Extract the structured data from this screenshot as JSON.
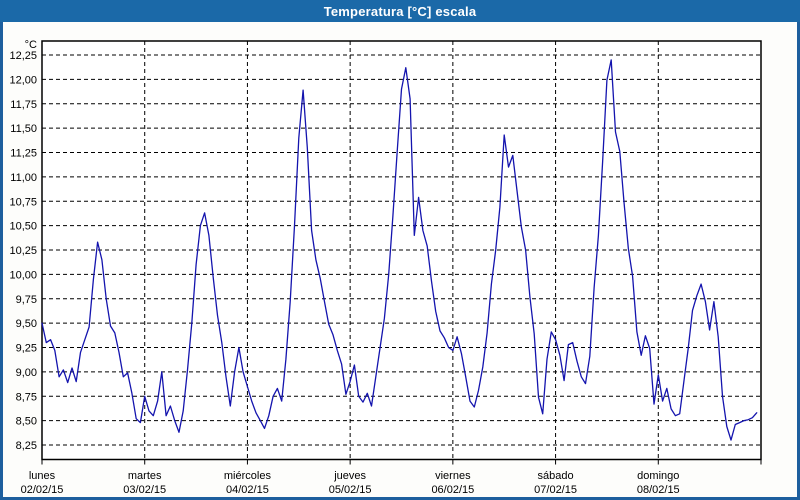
{
  "window": {
    "title": "Temperatura [°C] escala"
  },
  "colors": {
    "title_bar": "#1b69a8",
    "frame": "#1e5f9e",
    "line": "#1414ae",
    "grid": "#000000",
    "plot_background": "#ffffff",
    "page_background": "#fdfdfb",
    "text": "#000000"
  },
  "chart_data": {
    "type": "line",
    "title": "Temperatura [°C] escala",
    "y_unit_label": "°C",
    "ylabel": "Temperatura",
    "ylim": [
      8.1,
      12.4
    ],
    "grid": "dashed",
    "legend": "none",
    "y_ticks": [
      12.25,
      12.0,
      11.75,
      11.5,
      11.25,
      11.0,
      10.75,
      10.5,
      10.25,
      10.0,
      9.75,
      9.5,
      9.25,
      9.0,
      8.75,
      8.5,
      8.25
    ],
    "y_tick_labels": [
      "12,25",
      "12,00",
      "11,75",
      "11,50",
      "11,25",
      "11,00",
      "10,75",
      "10,50",
      "10,25",
      "10,00",
      "9,75",
      "9,50",
      "9,25",
      "9,00",
      "8,75",
      "8,50",
      "8,25"
    ],
    "x_days": [
      {
        "name": "lunes",
        "date": "02/02/15"
      },
      {
        "name": "martes",
        "date": "03/02/15"
      },
      {
        "name": "miércoles",
        "date": "04/02/15"
      },
      {
        "name": "jueves",
        "date": "05/02/15"
      },
      {
        "name": "viernes",
        "date": "06/02/15"
      },
      {
        "name": "sábado",
        "date": "07/02/15"
      },
      {
        "name": "domingo",
        "date": "08/02/15"
      }
    ],
    "series": [
      {
        "name": "Temperatura",
        "points_per_day": 24,
        "hourly_values_by_day": [
          [
            9.5,
            9.3,
            9.33,
            9.22,
            8.95,
            9.02,
            8.89,
            9.04,
            8.9,
            9.2,
            9.33,
            9.46,
            9.95,
            10.33,
            10.15,
            9.75,
            9.47,
            9.4,
            9.2,
            8.95,
            8.99,
            8.78,
            8.52,
            8.48
          ],
          [
            8.75,
            8.6,
            8.55,
            8.7,
            9.0,
            8.55,
            8.65,
            8.5,
            8.38,
            8.6,
            9.02,
            9.5,
            10.1,
            10.5,
            10.63,
            10.4,
            9.97,
            9.58,
            9.3,
            8.95,
            8.65,
            9.0,
            9.25,
            9.0
          ],
          [
            8.85,
            8.7,
            8.58,
            8.5,
            8.42,
            8.55,
            8.75,
            8.83,
            8.7,
            9.13,
            9.72,
            10.5,
            11.4,
            11.89,
            11.3,
            10.45,
            10.15,
            9.96,
            9.72,
            9.49,
            9.38,
            9.22,
            9.08,
            8.77
          ],
          [
            8.9,
            9.07,
            8.75,
            8.69,
            8.78,
            8.65,
            8.95,
            9.25,
            9.55,
            10.0,
            10.6,
            11.26,
            11.9,
            12.12,
            11.8,
            10.4,
            10.79,
            10.45,
            10.29,
            9.93,
            9.62,
            9.42,
            9.35,
            9.25
          ],
          [
            9.22,
            9.36,
            9.19,
            8.95,
            8.7,
            8.64,
            8.81,
            9.05,
            9.4,
            9.9,
            10.25,
            10.69,
            11.43,
            11.1,
            11.22,
            10.85,
            10.49,
            10.25,
            9.77,
            9.39,
            8.74,
            8.57,
            9.13,
            9.41
          ],
          [
            9.33,
            9.17,
            8.91,
            9.28,
            9.3,
            9.11,
            8.95,
            8.88,
            9.16,
            9.86,
            10.4,
            11.15,
            11.99,
            12.2,
            11.46,
            11.26,
            10.74,
            10.27,
            9.98,
            9.41,
            9.17,
            9.37,
            9.24,
            8.67
          ],
          [
            8.97,
            8.7,
            8.83,
            8.62,
            8.55,
            8.57,
            8.91,
            9.24,
            9.63,
            9.78,
            9.9,
            9.72,
            9.43,
            9.72,
            9.36,
            8.75,
            8.44,
            8.3,
            8.46,
            8.48,
            8.5,
            8.51,
            8.53,
            8.58
          ]
        ]
      }
    ]
  }
}
